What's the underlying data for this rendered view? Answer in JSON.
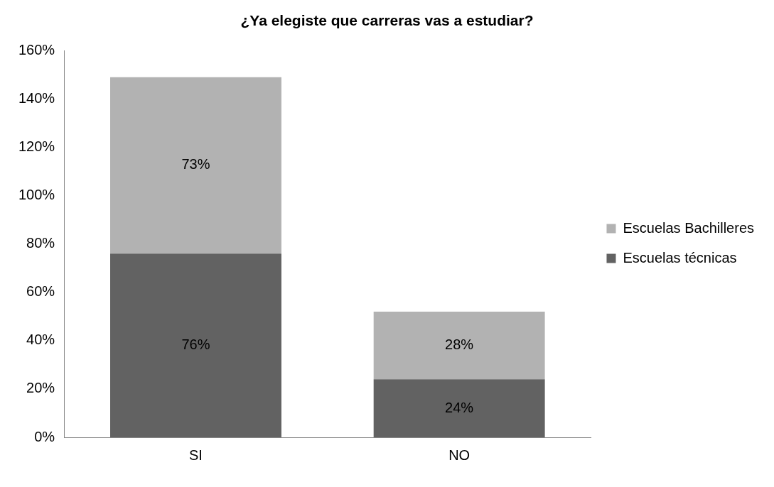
{
  "chart_data": {
    "type": "bar",
    "title": "¿Ya elegiste que carreras vas a estudiar?",
    "categories": [
      "SI",
      "NO"
    ],
    "stacked": true,
    "series": [
      {
        "name": "Escuelas técnicas",
        "color": "#626262",
        "values": [
          76,
          24
        ],
        "value_labels": [
          "76%",
          "24%"
        ]
      },
      {
        "name": "Escuelas Bachilleres",
        "color": "#b2b2b2",
        "values": [
          73,
          28
        ],
        "value_labels": [
          "73%",
          "28%"
        ]
      }
    ],
    "ylim": [
      0,
      160
    ],
    "yticks": [
      {
        "value": 0,
        "label": "0%"
      },
      {
        "value": 20,
        "label": "20%"
      },
      {
        "value": 40,
        "label": "40%"
      },
      {
        "value": 60,
        "label": "60%"
      },
      {
        "value": 80,
        "label": "80%"
      },
      {
        "value": 100,
        "label": "100%"
      },
      {
        "value": 120,
        "label": "120%"
      },
      {
        "value": 140,
        "label": "140%"
      },
      {
        "value": 160,
        "label": "160%"
      }
    ],
    "grid": false,
    "legend": "right"
  }
}
